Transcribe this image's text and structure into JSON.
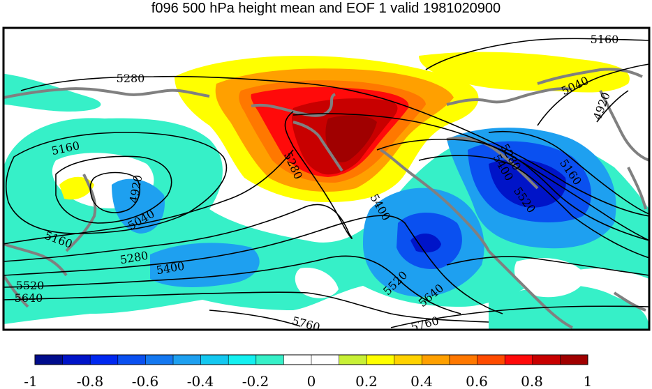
{
  "title": "f096 500 hPa height mean and EOF 1 valid 1981020900",
  "contour_labels": [
    "5160",
    "5040",
    "4920",
    "5280",
    "5160",
    "4920",
    "5040",
    "5160",
    "5280",
    "5400",
    "5520",
    "5640",
    "5280",
    "5400",
    "5520",
    "5640",
    "5760",
    "5760",
    "5280",
    "5400",
    "5520",
    "5160"
  ],
  "colorbar": {
    "tick_labels": [
      "-1",
      "-0.8",
      "-0.6",
      "-0.4",
      "-0.2",
      "0",
      "0.2",
      "0.4",
      "0.6",
      "0.8",
      "1"
    ],
    "colors": [
      "#000c8c",
      "#0014c8",
      "#0028f0",
      "#0a50f0",
      "#1478f0",
      "#1ea0f0",
      "#14c8f0",
      "#14f0f0",
      "#36f0c8",
      "#ffffff",
      "#ffffff",
      "#c8f036",
      "#ffff00",
      "#ffd200",
      "#ffa000",
      "#ff7800",
      "#ff4b00",
      "#ff0a0a",
      "#c80000",
      "#a00000"
    ]
  },
  "colors": {
    "land": "#808080",
    "contour": "#000000",
    "frame": "#000000"
  }
}
